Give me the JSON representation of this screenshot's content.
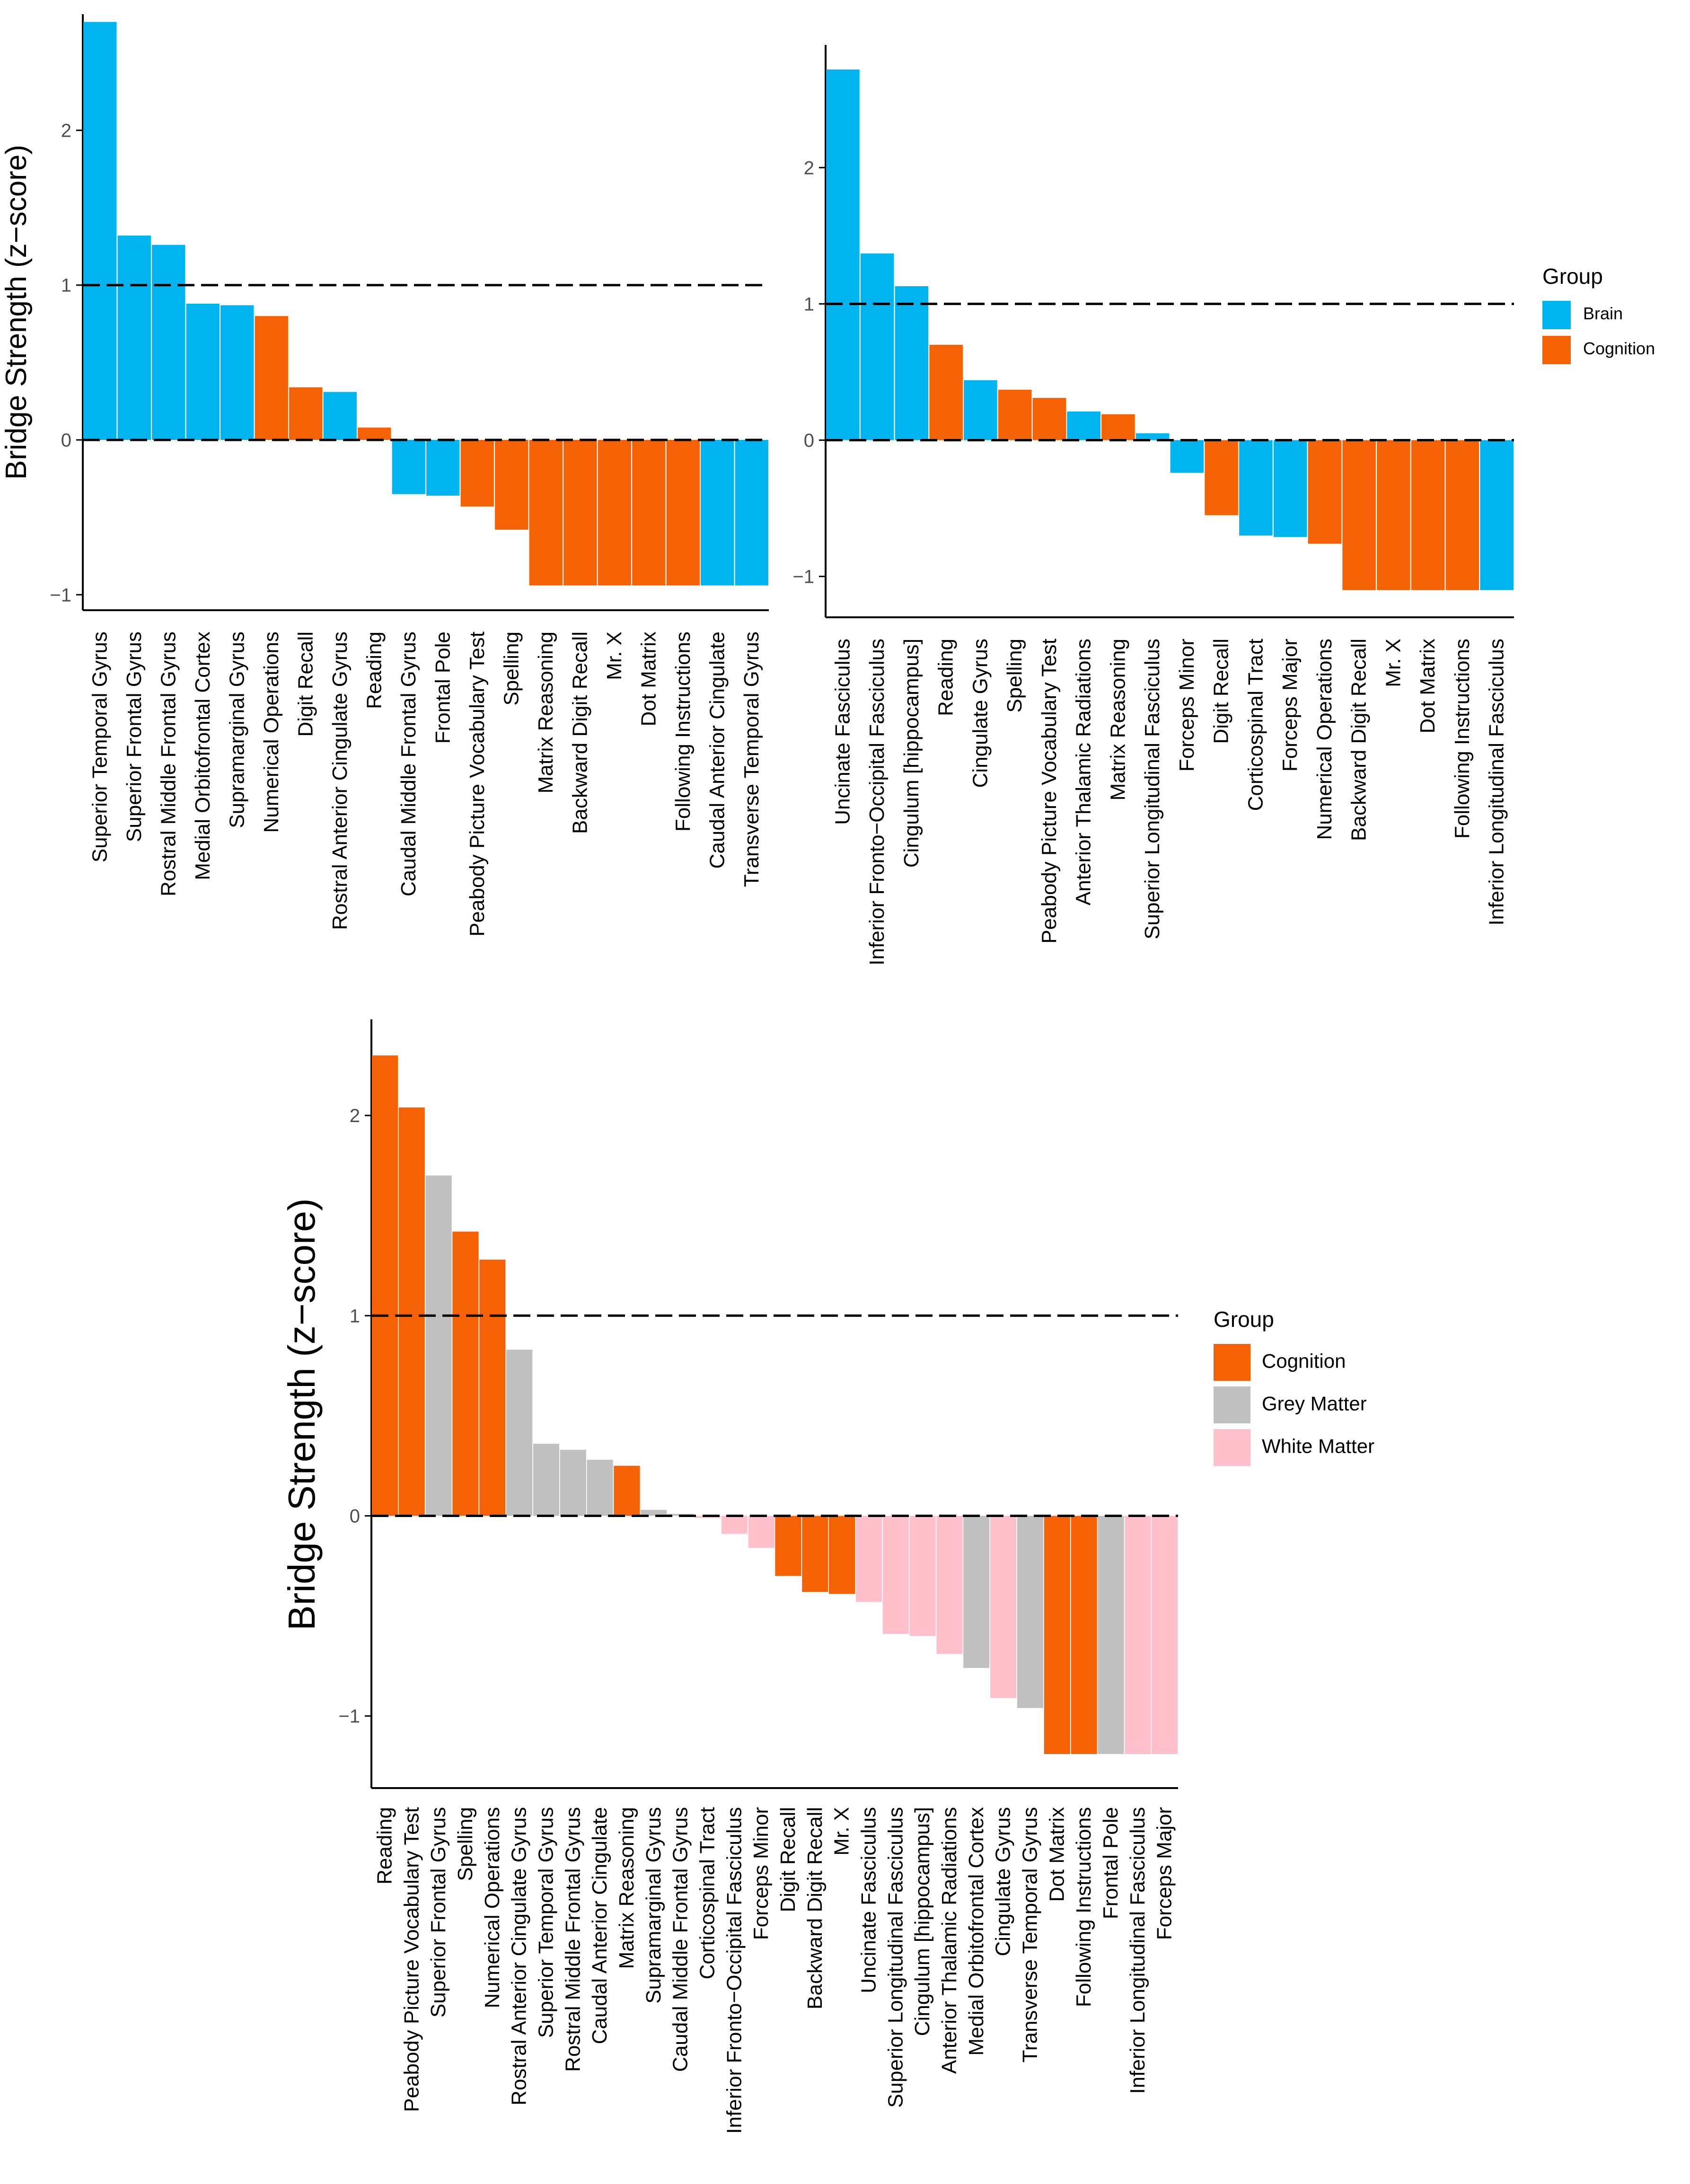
{
  "chart_data": [
    {
      "type": "bar",
      "ylabel": "Bridge Strength (z−score)",
      "ylim": [
        -1.1,
        2.75
      ],
      "yticks": [
        "−1",
        "0",
        "1",
        "2"
      ],
      "reference_lines": [
        0,
        1
      ],
      "legend": null,
      "categories": [
        "Superior Temporal Gyrus",
        "Superior Frontal Gyrus",
        "Rostral Middle Frontal Gyrus",
        "Medial Orbitofrontal Cortex",
        "Supramarginal Gyrus",
        "Numerical Operations",
        "Digit Recall",
        "Rostral Anterior Cingulate Gyrus",
        "Reading",
        "Caudal Middle Frontal Gyrus",
        "Frontal Pole",
        "Peabody Picture Vocabulary Test",
        "Spelling",
        "Matrix Reasoning",
        "Backward Digit Recall",
        "Mr. X",
        "Dot Matrix",
        "Following Instructions",
        "Caudal Anterior Cingulate",
        "Transverse Temporal Gyrus"
      ],
      "values": [
        2.7,
        1.32,
        1.26,
        0.88,
        0.87,
        0.8,
        0.34,
        0.31,
        0.08,
        -0.35,
        -0.36,
        -0.43,
        -0.58,
        -0.94,
        -0.94,
        -0.94,
        -0.94,
        -0.94,
        -0.94,
        -0.94
      ],
      "groups": [
        "Brain",
        "Brain",
        "Brain",
        "Brain",
        "Brain",
        "Cognition",
        "Cognition",
        "Brain",
        "Cognition",
        "Brain",
        "Brain",
        "Cognition",
        "Cognition",
        "Cognition",
        "Cognition",
        "Cognition",
        "Cognition",
        "Cognition",
        "Brain",
        "Brain"
      ]
    },
    {
      "type": "bar",
      "ylabel": "",
      "ylim": [
        -1.3,
        2.9
      ],
      "yticks": [
        "−1",
        "0",
        "1",
        "2"
      ],
      "reference_lines": [
        0,
        1
      ],
      "legend": {
        "title": "Group",
        "placement": "right",
        "items": [
          "Brain",
          "Cognition"
        ]
      },
      "categories": [
        "Uncinate Fasciculus",
        "Inferior Fronto−Occipital Fasciculus",
        "Cingulum [hippocampus]",
        "Reading",
        "Cingulate Gyrus",
        "Spelling",
        "Peabody Picture Vocabulary Test",
        "Anterior Thalamic Radiations",
        "Matrix Reasoning",
        "Superior Longitudinal Fasciculus",
        "Forceps Minor",
        "Digit Recall",
        "Corticospinal Tract",
        "Forceps Major",
        "Numerical Operations",
        "Backward Digit Recall",
        "Mr. X",
        "Dot Matrix",
        "Following Instructions",
        "Inferior Longitudinal Fasciculus"
      ],
      "values": [
        2.72,
        1.37,
        1.13,
        0.7,
        0.44,
        0.37,
        0.31,
        0.21,
        0.19,
        0.05,
        -0.24,
        -0.55,
        -0.7,
        -0.71,
        -0.76,
        -1.1,
        -1.1,
        -1.1,
        -1.1,
        -1.1
      ],
      "groups": [
        "Brain",
        "Brain",
        "Brain",
        "Cognition",
        "Brain",
        "Cognition",
        "Cognition",
        "Brain",
        "Cognition",
        "Brain",
        "Brain",
        "Cognition",
        "Brain",
        "Brain",
        "Cognition",
        "Cognition",
        "Cognition",
        "Cognition",
        "Cognition",
        "Brain"
      ]
    },
    {
      "type": "bar",
      "ylabel": "Bridge Strength (z−score)",
      "ylim": [
        -1.36,
        2.48
      ],
      "yticks": [
        "−1",
        "0",
        "1",
        "2"
      ],
      "reference_lines": [
        0,
        1
      ],
      "legend": {
        "title": "Group",
        "placement": "right",
        "items": [
          "Cognition",
          "Grey Matter",
          "White Matter"
        ]
      },
      "categories": [
        "Reading",
        "Peabody Picture Vocabulary Test",
        "Superior Frontal Gyrus",
        "Spelling",
        "Numerical Operations",
        "Rostral Anterior Cingulate Gyrus",
        "Superior Temporal Gyrus",
        "Rostral Middle Frontal Gyrus",
        "Caudal Anterior Cingulate",
        "Matrix Reasoning",
        "Supramarginal Gyrus",
        "Caudal Middle Frontal Gyrus",
        "Corticospinal Tract",
        "Inferior Fronto−Occipital Fasciculus",
        "Forceps Minor",
        "Digit Recall",
        "Backward Digit Recall",
        "Mr. X",
        "Uncinate Fasciculus",
        "Superior Longitudinal Fasciculus",
        "Cingulum [hippocampus]",
        "Anterior Thalamic Radiations",
        "Medial Orbitofrontal Cortex",
        "Cingulate Gyrus",
        "Transverse Temporal Gyrus",
        "Dot Matrix",
        "Following Instructions",
        "Frontal Pole",
        "Inferior Longitudinal Fasciculus",
        "Forceps Major"
      ],
      "values": [
        2.3,
        2.04,
        1.7,
        1.42,
        1.28,
        0.83,
        0.36,
        0.33,
        0.28,
        0.25,
        0.03,
        0.01,
        -0.01,
        -0.09,
        -0.16,
        -0.3,
        -0.38,
        -0.39,
        -0.43,
        -0.59,
        -0.6,
        -0.69,
        -0.76,
        -0.91,
        -0.96,
        -1.19,
        -1.19,
        -1.19,
        -1.19,
        -1.19
      ],
      "groups": [
        "Cognition",
        "Cognition",
        "Grey Matter",
        "Cognition",
        "Cognition",
        "Grey Matter",
        "Grey Matter",
        "Grey Matter",
        "Grey Matter",
        "Cognition",
        "Grey Matter",
        "Grey Matter",
        "White Matter",
        "White Matter",
        "White Matter",
        "Cognition",
        "Cognition",
        "Cognition",
        "White Matter",
        "White Matter",
        "White Matter",
        "White Matter",
        "Grey Matter",
        "White Matter",
        "Grey Matter",
        "Cognition",
        "Cognition",
        "Grey Matter",
        "White Matter",
        "White Matter"
      ]
    }
  ],
  "colors": {
    "Brain": "#00b4f0",
    "Cognition": "#f46205",
    "Grey Matter": "#c0c0c0",
    "White Matter": "#ffc0cb",
    "axis": "#000000",
    "tick_text": "#4d4d4d"
  }
}
